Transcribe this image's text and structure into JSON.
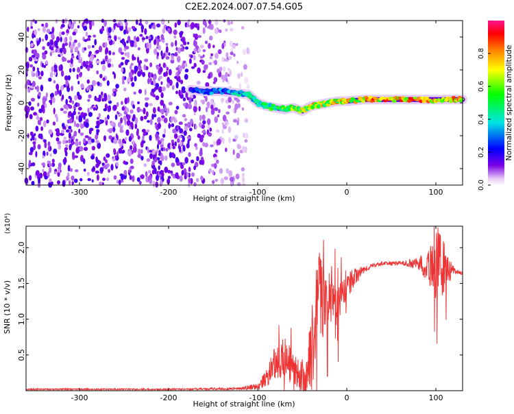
{
  "title": "C2E2.2024.007.07.54.G05",
  "colors": {
    "snr_line": "#ee3333",
    "spectrogram_noise": "#6a1bd8",
    "axis": "#000000"
  },
  "chart_data": [
    {
      "type": "heatmap",
      "xlabel": "Height of straight line (km)",
      "ylabel": "Frequency (Hz)",
      "xlim": [
        -360,
        130
      ],
      "ylim": [
        -50,
        50
      ],
      "xticks": [
        -300,
        -200,
        -100,
        0,
        100
      ],
      "yticks": [
        -40,
        -20,
        0,
        20,
        40
      ],
      "colorbar": {
        "label": "Normalized spectral amplitude",
        "range": [
          0.0,
          1.0
        ],
        "ticks": [
          0.0,
          0.2,
          0.4,
          0.6,
          0.8
        ],
        "colormap": "rainbow"
      },
      "ridge": {
        "name": "dominant frequency track",
        "x": [
          -175,
          -160,
          -140,
          -125,
          -110,
          -100,
          -90,
          -80,
          -70,
          -60,
          -50,
          -40,
          -30,
          -20,
          -10,
          0,
          20,
          40,
          60,
          80,
          100,
          120,
          130
        ],
        "y": [
          8,
          7,
          7,
          6,
          5,
          0,
          -2,
          -3,
          -4,
          -3,
          -5,
          -2,
          -1,
          0,
          1,
          1,
          2,
          2,
          2,
          2,
          2,
          2,
          2
        ],
        "amplitude": [
          0.3,
          0.35,
          0.35,
          0.45,
          0.5,
          0.55,
          0.55,
          0.6,
          0.65,
          0.7,
          0.75,
          0.8,
          0.8,
          0.8,
          0.85,
          0.85,
          0.85,
          0.9,
          0.9,
          0.9,
          0.9,
          0.9,
          0.9
        ]
      },
      "noise_region": {
        "x_range": [
          -360,
          -120
        ],
        "amplitude": 0.1
      }
    },
    {
      "type": "line",
      "xlabel": "Height of straight line (km)",
      "ylabel": "SNR (10 * v/v)",
      "y_scale_label": "(x10⁴)",
      "xlim": [
        -360,
        130
      ],
      "ylim": [
        0,
        2.3
      ],
      "xticks": [
        -300,
        -200,
        -100,
        0,
        100
      ],
      "yticks": [
        0.5,
        1.0,
        1.5,
        2.0
      ],
      "series": [
        {
          "x": [
            -360,
            -300,
            -200,
            -120,
            -100,
            -90,
            -80,
            -70,
            -60,
            -50,
            -45,
            -40,
            -35,
            -30,
            -25,
            -20,
            -10,
            0,
            10,
            20,
            30,
            40,
            60,
            80,
            90,
            100,
            110,
            120,
            130
          ],
          "y": [
            0.02,
            0.02,
            0.02,
            0.03,
            0.06,
            0.18,
            0.4,
            0.45,
            0.3,
            0.2,
            0.15,
            0.5,
            1.0,
            1.4,
            1.2,
            1.3,
            1.2,
            1.45,
            1.6,
            1.7,
            1.75,
            1.78,
            1.78,
            1.78,
            1.75,
            1.8,
            1.72,
            1.68,
            1.64
          ],
          "noise_amplitude": [
            0.01,
            0.01,
            0.01,
            0.02,
            0.05,
            0.12,
            0.25,
            0.3,
            0.25,
            0.2,
            0.3,
            0.6,
            0.7,
            0.6,
            0.5,
            0.35,
            0.3,
            0.2,
            0.12,
            0.05,
            0.03,
            0.03,
            0.03,
            0.08,
            0.25,
            0.5,
            0.35,
            0.05,
            0.02
          ]
        }
      ]
    }
  ]
}
